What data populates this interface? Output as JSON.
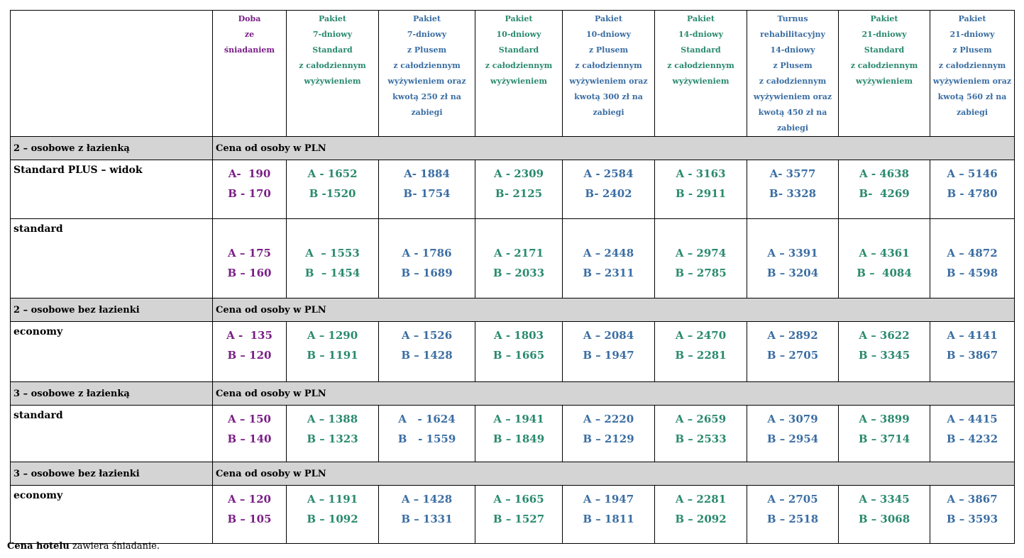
{
  "columns": [
    {
      "lines": [
        "",
        "",
        "",
        "",
        "",
        "",
        ""
      ],
      "color": "",
      "room": true
    },
    {
      "lines": [
        "Doba",
        "ze",
        "śniadaniem"
      ],
      "color": "#7a1f86"
    },
    {
      "lines": [
        "Pakiet",
        "7-dniowy",
        "Standard",
        "z całodziennym",
        "wyżywieniem"
      ],
      "color": "#2a8a6e"
    },
    {
      "lines": [
        "Pakiet",
        "7-dniowy",
        "z Plusem",
        "z całodziennym",
        "wyżywieniem oraz",
        "kwotą 250 zł na",
        "zabiegi"
      ],
      "color": "#3b6ea3"
    },
    {
      "lines": [
        "Pakiet",
        "10-dniowy",
        "Standard",
        "z całodziennym",
        "wyżywieniem"
      ],
      "color": "#2a8a6e"
    },
    {
      "lines": [
        "Pakiet",
        "10-dniowy",
        "z Plusem",
        "z całodziennym",
        "wyżywieniem oraz",
        "kwotą 300 zł na",
        "zabiegi"
      ],
      "color": "#3b6ea3"
    },
    {
      "lines": [
        "Pakiet",
        "14-dniowy",
        "Standard",
        "z całodziennym",
        "wyżywieniem"
      ],
      "color": "#2a8a6e"
    },
    {
      "lines": [
        "Turnus",
        "rehabilitacyjny",
        "14-dniowy",
        "z Plusem",
        "z całodziennym",
        "wyżywieniem oraz",
        "kwotą 450 zł na",
        "zabiegi"
      ],
      "color": "#3b6ea3"
    },
    {
      "lines": [
        "Pakiet",
        "21-dniowy",
        "Standard",
        "z całodziennym",
        "wyżywieniem"
      ],
      "color": "#2a8a6e"
    },
    {
      "lines": [
        "Pakiet",
        "21-dniowy",
        "z Plusem",
        "z całodziennym",
        "wyżywieniem oraz",
        "kwotą 560 zł na",
        "zabiegi"
      ],
      "color": "#3b6ea3"
    }
  ],
  "rows": [
    {
      "type": "section",
      "label": "2 – osobowe z łazienką",
      "note": "Cena od osoby w PLN"
    },
    {
      "type": "room",
      "label": "Standard PLUS – widok",
      "valign": "top",
      "values": [
        [
          "A-  190",
          "B - 170"
        ],
        [
          "A - 1652",
          "B -1520"
        ],
        [
          "A- 1884",
          "B- 1754"
        ],
        [
          "A - 2309",
          "B- 2125"
        ],
        [
          "A - 2584",
          "B- 2402"
        ],
        [
          "A - 3163",
          "B - 2911"
        ],
        [
          "A- 3577",
          "B- 3328"
        ],
        [
          "A - 4638",
          "B-  4269"
        ],
        [
          "A – 5146",
          "B - 4780"
        ]
      ]
    },
    {
      "type": "room",
      "label": "standard",
      "valign": "mid",
      "values": [
        [
          "A – 175",
          "B – 160"
        ],
        [
          "A  – 1553",
          "B  – 1454"
        ],
        [
          "A - 1786",
          "B – 1689"
        ],
        [
          "A - 2171",
          "B – 2033"
        ],
        [
          "A – 2448",
          "B – 2311"
        ],
        [
          "A – 2974",
          "B – 2785"
        ],
        [
          "A – 3391",
          "B – 3204"
        ],
        [
          "A – 4361",
          "B –  4084"
        ],
        [
          "A – 4872",
          "B – 4598"
        ]
      ]
    },
    {
      "type": "section",
      "label": "2 – osobowe bez  łazienki",
      "note": "Cena od osoby w PLN"
    },
    {
      "type": "room",
      "label": "economy",
      "valign": "top",
      "values": [
        [
          "A -  135",
          "B – 120"
        ],
        [
          "A – 1290",
          "B – 1191"
        ],
        [
          "A – 1526",
          "B – 1428"
        ],
        [
          "A - 1803",
          "B – 1665"
        ],
        [
          "A – 2084",
          "B – 1947"
        ],
        [
          "A – 2470",
          "B – 2281"
        ],
        [
          "A – 2892",
          "B – 2705"
        ],
        [
          "A – 3622",
          "B – 3345"
        ],
        [
          "A – 4141",
          "B – 3867"
        ]
      ]
    },
    {
      "type": "section",
      "label": "3 – osobowe z łazienką",
      "note": "Cena od osoby w PLN"
    },
    {
      "type": "room",
      "label": "standard",
      "valign": "top",
      "values": [
        [
          "A – 150",
          "B – 140"
        ],
        [
          "A – 1388",
          "B – 1323"
        ],
        [
          "A   - 1624",
          "B   - 1559"
        ],
        [
          "A – 1941",
          "B – 1849"
        ],
        [
          "A – 2220",
          "B – 2129"
        ],
        [
          "A – 2659",
          "B – 2533"
        ],
        [
          "A – 3079",
          "B – 2954"
        ],
        [
          "A – 3899",
          "B – 3714"
        ],
        [
          "A – 4415",
          "B – 4232"
        ]
      ]
    },
    {
      "type": "section",
      "label": "3 – osobowe bez łazienki",
      "note": "Cena od osoby w PLN"
    },
    {
      "type": "room",
      "label": "economy",
      "valign": "top",
      "values": [
        [
          "A – 120",
          "B – 105"
        ],
        [
          "A – 1191",
          "B – 1092"
        ],
        [
          "A – 1428",
          "B – 1331"
        ],
        [
          "A – 1665",
          "B – 1527"
        ],
        [
          "A – 1947",
          "B – 1811"
        ],
        [
          "A – 2281",
          "B – 2092"
        ],
        [
          "A – 2705",
          "B – 2518"
        ],
        [
          "A – 3345",
          "B – 3068"
        ],
        [
          "A – 3867",
          "B – 3593"
        ]
      ]
    }
  ],
  "footnote": {
    "bold": "Cena hotelu",
    "rest": " zawiera śniadanie."
  }
}
